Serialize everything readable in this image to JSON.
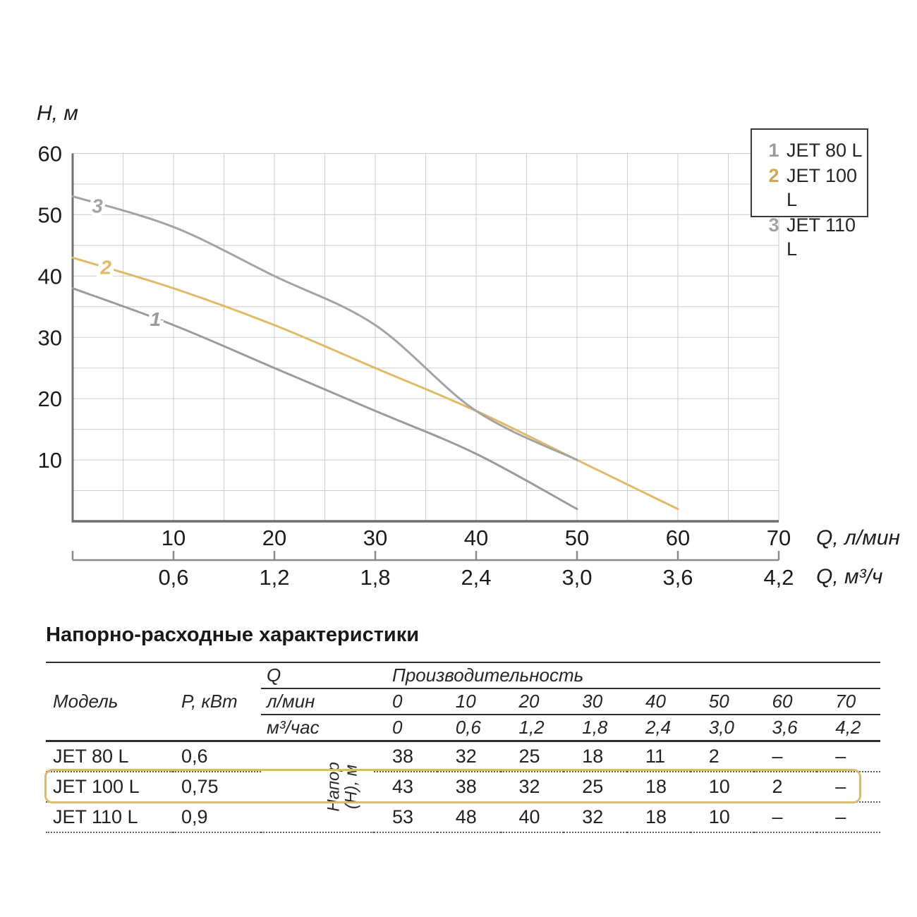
{
  "chart_data": {
    "type": "line",
    "title": "",
    "ylabel": "H, м",
    "xlabel_lmin": "Q, л/мин",
    "xlabel_m3h": "Q, м³/ч",
    "xlim": [
      0,
      70
    ],
    "ylim": [
      0,
      60
    ],
    "grid": true,
    "grid_step": 5,
    "y_ticks": [
      60,
      50,
      40,
      30,
      20,
      10
    ],
    "x_ticks": [
      10,
      20,
      30,
      40,
      50,
      60,
      70
    ],
    "x2_ticks": [
      "0,6",
      "1,2",
      "1,8",
      "2,4",
      "3,0",
      "3,6",
      "4,2"
    ],
    "series": [
      {
        "id": "1",
        "name": "JET 80 L",
        "color": "#9b9b9b",
        "points": [
          [
            0,
            38
          ],
          [
            10,
            32
          ],
          [
            20,
            25
          ],
          [
            30,
            18
          ],
          [
            40,
            11
          ],
          [
            50,
            2
          ]
        ],
        "label_pos": [
          8.2,
          33.0
        ]
      },
      {
        "id": "2",
        "name": "JET 100 L",
        "color": "#e0ba66",
        "points": [
          [
            0,
            43
          ],
          [
            10,
            38
          ],
          [
            20,
            32
          ],
          [
            30,
            25
          ],
          [
            40,
            18
          ],
          [
            50,
            10
          ],
          [
            60,
            2
          ]
        ],
        "label_pos": [
          3.3,
          41.5
        ]
      },
      {
        "id": "3",
        "name": "JET 110 L",
        "color": "#a3a3a3",
        "points": [
          [
            0,
            53
          ],
          [
            10,
            48
          ],
          [
            20,
            40
          ],
          [
            30,
            32
          ],
          [
            40,
            18
          ],
          [
            50,
            10
          ]
        ],
        "label_pos": [
          2.45,
          51.5
        ]
      }
    ]
  },
  "legend": {
    "items": [
      {
        "num": "1",
        "label": "JET 80 L",
        "num_color": "#9b9b9b"
      },
      {
        "num": "2",
        "label": "JET 100 L",
        "num_color": "#cfa855"
      },
      {
        "num": "3",
        "label": "JET 110 L",
        "num_color": "#a3a3a3"
      }
    ]
  },
  "table": {
    "title": "Напорно-расходные характеристики",
    "header": {
      "model": "Модель",
      "power": "P, кВт",
      "q": "Q",
      "performance": "Производительность",
      "units_lmin": "л/мин",
      "units_m3h": "м³/час",
      "lmin_values": [
        "0",
        "10",
        "20",
        "30",
        "40",
        "50",
        "60",
        "70"
      ],
      "m3h_values": [
        "0",
        "0,6",
        "1,2",
        "1,8",
        "2,4",
        "3,0",
        "3,6",
        "4,2"
      ]
    },
    "head_label": "Напор (Н), м",
    "rows": [
      {
        "model": "JET 80 L",
        "power": "0,6",
        "values": [
          "38",
          "32",
          "25",
          "18",
          "11",
          "2",
          "–",
          "–"
        ],
        "highlight": false
      },
      {
        "model": "JET 100 L",
        "power": "0,75",
        "values": [
          "43",
          "38",
          "32",
          "25",
          "18",
          "10",
          "2",
          "–"
        ],
        "highlight": true
      },
      {
        "model": "JET 110 L",
        "power": "0,9",
        "values": [
          "53",
          "48",
          "40",
          "32",
          "18",
          "10",
          "–",
          "–"
        ],
        "highlight": false
      }
    ]
  },
  "colors": {
    "grid": "#cdcdcd",
    "axis": "#6f6f6f",
    "axis2": "#8a8a8a",
    "tick_text": "#1c1c1c",
    "highlight_border": "#d9bc72"
  }
}
